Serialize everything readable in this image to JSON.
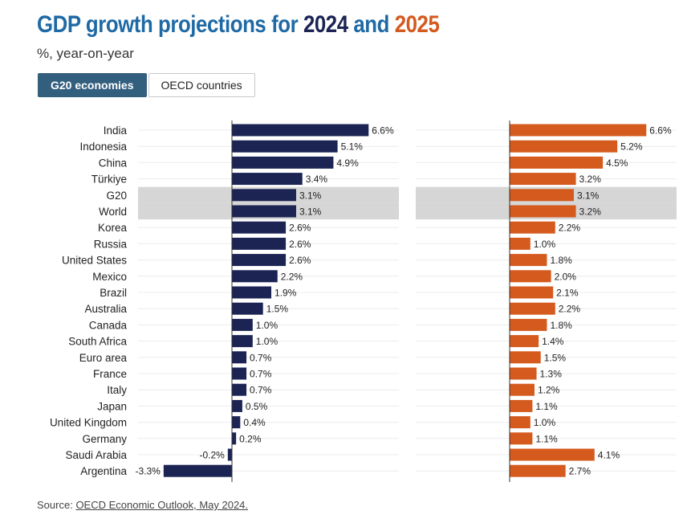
{
  "header": {
    "title_prefix": "GDP growth projections for",
    "title_year1": "2024",
    "title_and": "and",
    "title_year2": "2025",
    "subtitle": "%, year-on-year"
  },
  "tabs": [
    {
      "label": "G20 economies",
      "active": true
    },
    {
      "label": "OECD countries",
      "active": false
    }
  ],
  "source": {
    "prefix": "Source:",
    "link_text": "OECD Economic Outlook, May 2024."
  },
  "colors": {
    "series_2024": "#1b2453",
    "series_2025": "#d45a1e",
    "highlight_row": "#d6d6d6"
  },
  "chart_data": [
    {
      "type": "bar",
      "orientation": "horizontal",
      "series_name": "2024",
      "categories": [
        "India",
        "Indonesia",
        "China",
        "Türkiye",
        "G20",
        "World",
        "Korea",
        "Russia",
        "United States",
        "Mexico",
        "Brazil",
        "Australia",
        "Canada",
        "South Africa",
        "Euro area",
        "France",
        "Italy",
        "Japan",
        "United Kingdom",
        "Germany",
        "Saudi Arabia",
        "Argentina"
      ],
      "values": [
        6.6,
        5.1,
        4.9,
        3.4,
        3.1,
        3.1,
        2.6,
        2.6,
        2.6,
        2.2,
        1.9,
        1.5,
        1.0,
        1.0,
        0.7,
        0.7,
        0.7,
        0.5,
        0.4,
        0.2,
        -0.2,
        -3.3
      ],
      "labels": [
        "6.6%",
        "5.1%",
        "4.9%",
        "3.4%",
        "3.1%",
        "3.1%",
        "2.6%",
        "2.6%",
        "2.6%",
        "2.2%",
        "1.9%",
        "1.5%",
        "1.0%",
        "1.0%",
        "0.7%",
        "0.7%",
        "0.7%",
        "0.5%",
        "0.4%",
        "0.2%",
        "-0.2%",
        "-3.3%"
      ],
      "highlighted": [
        "G20",
        "World"
      ]
    },
    {
      "type": "bar",
      "orientation": "horizontal",
      "series_name": "2025",
      "categories": [
        "India",
        "Indonesia",
        "China",
        "Türkiye",
        "G20",
        "World",
        "Korea",
        "Russia",
        "United States",
        "Mexico",
        "Brazil",
        "Australia",
        "Canada",
        "South Africa",
        "Euro area",
        "France",
        "Italy",
        "Japan",
        "United Kingdom",
        "Germany",
        "Saudi Arabia",
        "Argentina"
      ],
      "values": [
        6.6,
        5.2,
        4.5,
        3.2,
        3.1,
        3.2,
        2.2,
        1.0,
        1.8,
        2.0,
        2.1,
        2.2,
        1.8,
        1.4,
        1.5,
        1.3,
        1.2,
        1.1,
        1.0,
        1.1,
        4.1,
        2.7
      ],
      "labels": [
        "6.6%",
        "5.2%",
        "4.5%",
        "3.2%",
        "3.1%",
        "3.2%",
        "2.2%",
        "1.0%",
        "1.8%",
        "2.0%",
        "2.1%",
        "2.2%",
        "1.8%",
        "1.4%",
        "1.5%",
        "1.3%",
        "1.2%",
        "1.1%",
        "1.0%",
        "1.1%",
        "4.1%",
        "2.7%"
      ],
      "highlighted": [
        "G20",
        "World"
      ]
    }
  ]
}
